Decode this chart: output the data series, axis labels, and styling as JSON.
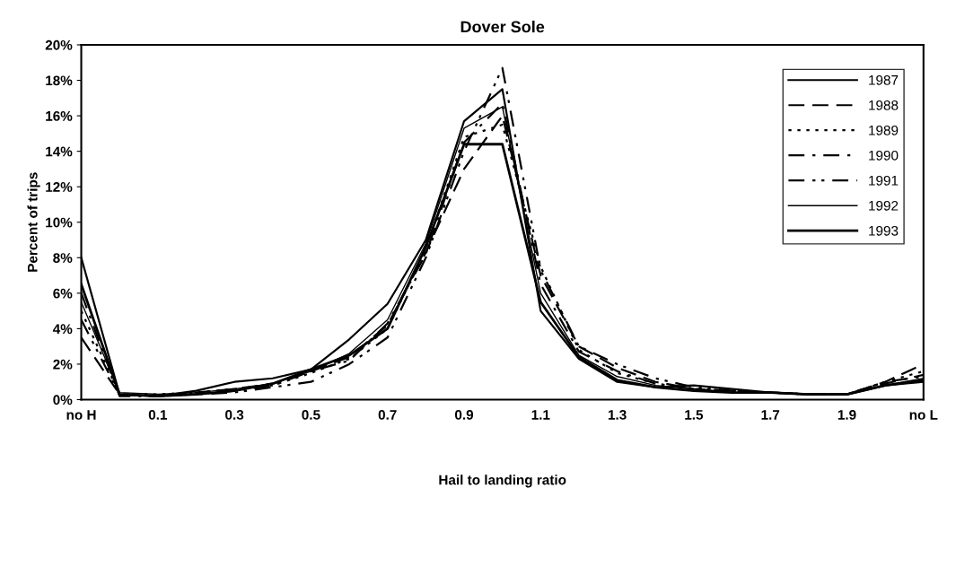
{
  "chart_data": {
    "type": "line",
    "title": "Dover Sole",
    "xlabel": "Hail to landing ratio",
    "ylabel": "Percent of trips",
    "categories": [
      "no H",
      null,
      "0.1",
      null,
      "0.3",
      null,
      "0.5",
      null,
      "0.7",
      null,
      "0.9",
      null,
      "1.1",
      null,
      "1.3",
      null,
      "1.5",
      null,
      "1.7",
      null,
      "1.9",
      null,
      "no L"
    ],
    "ylim": [
      0,
      20
    ],
    "yticks": [
      {
        "value": 0,
        "label": "0%"
      },
      {
        "value": 2,
        "label": "2%"
      },
      {
        "value": 4,
        "label": "4%"
      },
      {
        "value": 6,
        "label": "6%"
      },
      {
        "value": 8,
        "label": "8%"
      },
      {
        "value": 10,
        "label": "10%"
      },
      {
        "value": 12,
        "label": "12%"
      },
      {
        "value": 14,
        "label": "14%"
      },
      {
        "value": 16,
        "label": "16%"
      },
      {
        "value": 18,
        "label": "18%"
      },
      {
        "value": 20,
        "label": "20%"
      }
    ],
    "grid": false,
    "legend": "top right",
    "marker": "none",
    "series": [
      {
        "name": "1987",
        "color": "#000000",
        "line_style": "solid",
        "values": [
          8.0,
          0.3,
          0.2,
          0.5,
          1.0,
          1.2,
          1.7,
          3.4,
          5.4,
          9.0,
          15.7,
          17.5,
          5.0,
          2.3,
          1.0,
          0.7,
          0.8,
          0.6,
          0.4,
          0.3,
          0.3,
          0.8,
          1.0
        ]
      },
      {
        "name": "1988",
        "color": "#000000",
        "line_style": "dashed",
        "values": [
          3.5,
          0.3,
          0.2,
          0.4,
          0.6,
          0.9,
          1.6,
          2.4,
          4.2,
          8.3,
          13.0,
          16.0,
          7.0,
          3.0,
          1.8,
          1.0,
          0.6,
          0.5,
          0.4,
          0.3,
          0.3,
          1.0,
          2.0
        ]
      },
      {
        "name": "1989",
        "color": "#000000",
        "line_style": "dotted",
        "values": [
          5.0,
          0.3,
          0.3,
          0.4,
          0.6,
          0.8,
          1.5,
          2.3,
          4.0,
          8.5,
          14.8,
          15.5,
          7.5,
          2.8,
          1.5,
          0.9,
          0.6,
          0.5,
          0.4,
          0.3,
          0.3,
          1.0,
          1.6
        ]
      },
      {
        "name": "1990",
        "color": "#000000",
        "line_style": "dashdot",
        "values": [
          6.0,
          0.2,
          0.2,
          0.3,
          0.5,
          0.8,
          1.6,
          2.2,
          4.3,
          8.2,
          14.5,
          16.7,
          6.5,
          2.7,
          1.6,
          0.9,
          0.6,
          0.4,
          0.4,
          0.3,
          0.3,
          0.9,
          1.4
        ]
      },
      {
        "name": "1991",
        "color": "#000000",
        "line_style": "dashdotdot",
        "values": [
          4.5,
          0.3,
          0.2,
          0.3,
          0.4,
          0.7,
          1.0,
          2.0,
          3.5,
          8.0,
          14.0,
          18.7,
          7.3,
          3.0,
          2.0,
          1.2,
          0.7,
          0.5,
          0.4,
          0.3,
          0.3,
          1.0,
          1.3
        ]
      },
      {
        "name": "1992",
        "color": "#000000",
        "line_style": "solid",
        "values": [
          5.5,
          0.4,
          0.3,
          0.4,
          0.6,
          0.9,
          1.6,
          2.6,
          4.5,
          8.8,
          15.3,
          16.5,
          6.0,
          2.5,
          1.3,
          0.8,
          0.6,
          0.4,
          0.4,
          0.3,
          0.3,
          0.8,
          1.2
        ]
      },
      {
        "name": "1993",
        "color": "#000000",
        "line_style": "solid",
        "values": [
          6.5,
          0.3,
          0.2,
          0.3,
          0.5,
          0.9,
          1.7,
          2.5,
          4.0,
          8.6,
          14.4,
          14.4,
          5.5,
          2.4,
          1.1,
          0.7,
          0.5,
          0.4,
          0.4,
          0.3,
          0.3,
          0.8,
          1.1
        ]
      }
    ]
  }
}
